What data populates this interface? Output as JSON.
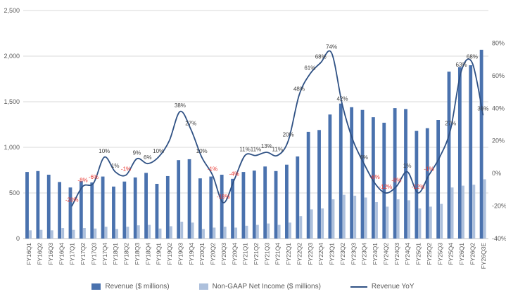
{
  "chart_data": {
    "type": "combo-bar-line",
    "title": "",
    "categories": [
      "FY16Q1",
      "FY16Q2",
      "FY16Q3",
      "FY16Q4",
      "FY17Q1",
      "FY17Q2",
      "FY17Q3",
      "FY17Q4",
      "FY18Q1",
      "FY18Q2",
      "FY18Q3",
      "FY18Q4",
      "FY19Q1",
      "FY19Q2",
      "FY19Q3",
      "FY19Q4",
      "FY20Q1",
      "FY20Q2",
      "FY20Q3",
      "FY20Q4",
      "FY21Q1",
      "FY21Q2",
      "FY21Q3",
      "FY21Q4",
      "FY22Q1",
      "FY22Q2",
      "FY22Q3",
      "FY22Q4",
      "FY23Q1",
      "FY23Q2",
      "FY23Q3",
      "FY23Q4",
      "FY24Q1",
      "FY24Q2",
      "FY24Q3",
      "FY24Q4",
      "FY25Q1",
      "FY25Q2",
      "FY25Q3",
      "FY25Q4",
      "FY26Q1",
      "FY26Q2",
      "FY26Q3E"
    ],
    "series": [
      {
        "name": "Revenue ($ millions)",
        "type": "bar",
        "axis": "left",
        "color": "#4a72ae",
        "values": [
          730,
          740,
          700,
          620,
          560,
          630,
          615,
          680,
          570,
          625,
          670,
          720,
          600,
          685,
          860,
          870,
          660,
          680,
          700,
          655,
          730,
          745,
          790,
          740,
          810,
          900,
          1170,
          1190,
          1360,
          1480,
          1440,
          1410,
          1330,
          1270,
          1430,
          1420,
          1180,
          1210,
          1300,
          1830,
          1880,
          1900,
          2070
        ]
      },
      {
        "name": "Non-GAAP Net Income ($ millions)",
        "type": "bar",
        "axis": "left",
        "color": "#adc0dc",
        "values": [
          90,
          95,
          90,
          115,
          95,
          115,
          110,
          130,
          105,
          130,
          145,
          150,
          110,
          135,
          185,
          175,
          105,
          120,
          130,
          120,
          140,
          150,
          165,
          150,
          175,
          245,
          320,
          330,
          430,
          480,
          470,
          450,
          400,
          350,
          430,
          420,
          330,
          350,
          380,
          560,
          580,
          590,
          650
        ]
      },
      {
        "name": "Revenue YoY",
        "type": "line",
        "axis": "right",
        "color": "#2f5184",
        "start_index": 4,
        "values": [
          -20,
          -8,
          -6,
          10,
          1,
          -1,
          9,
          6,
          10,
          20,
          38,
          27,
          10,
          -1,
          -18,
          -4,
          11,
          11,
          13,
          11,
          20,
          48,
          61,
          68,
          74,
          42,
          20,
          6,
          -6,
          -12,
          -8,
          1,
          -12,
          -1,
          10,
          27,
          63,
          68,
          36
        ],
        "labels_hidden_at": [
          9,
          26,
          34
        ],
        "label_suffix": "%",
        "label_color_positive": "#3f3f3f",
        "label_color_negative": "#e8352e"
      }
    ],
    "axes": {
      "left": {
        "max": 2500,
        "ticks": [
          {
            "v": 2500,
            "label": "2,500"
          },
          {
            "v": 2000,
            "label": "2,000"
          },
          {
            "v": 1500,
            "label": "1,500"
          },
          {
            "v": 1000,
            "label": "1,000"
          },
          {
            "v": 500,
            "label": "500"
          },
          {
            "v": 0,
            "label": "0"
          }
        ]
      },
      "right": {
        "min": -40,
        "max": 100,
        "ticks": [
          {
            "v": 80,
            "label": "80%"
          },
          {
            "v": 60,
            "label": "60%"
          },
          {
            "v": 40,
            "label": "40%"
          },
          {
            "v": 20,
            "label": "20%"
          },
          {
            "v": 0,
            "label": "0%"
          },
          {
            "v": -20,
            "label": "-20%"
          },
          {
            "v": -40,
            "label": "-40%"
          }
        ]
      }
    },
    "style": {
      "gridline_color": "#dadada",
      "axis_text_color": "#595959",
      "baseline_color": "#bfbfbf",
      "background": "#ffffff"
    },
    "legend": {
      "revenue": "Revenue ($ millions)",
      "net_income": "Non-GAAP Net Income ($ millions)",
      "yoy": "Revenue YoY"
    }
  }
}
